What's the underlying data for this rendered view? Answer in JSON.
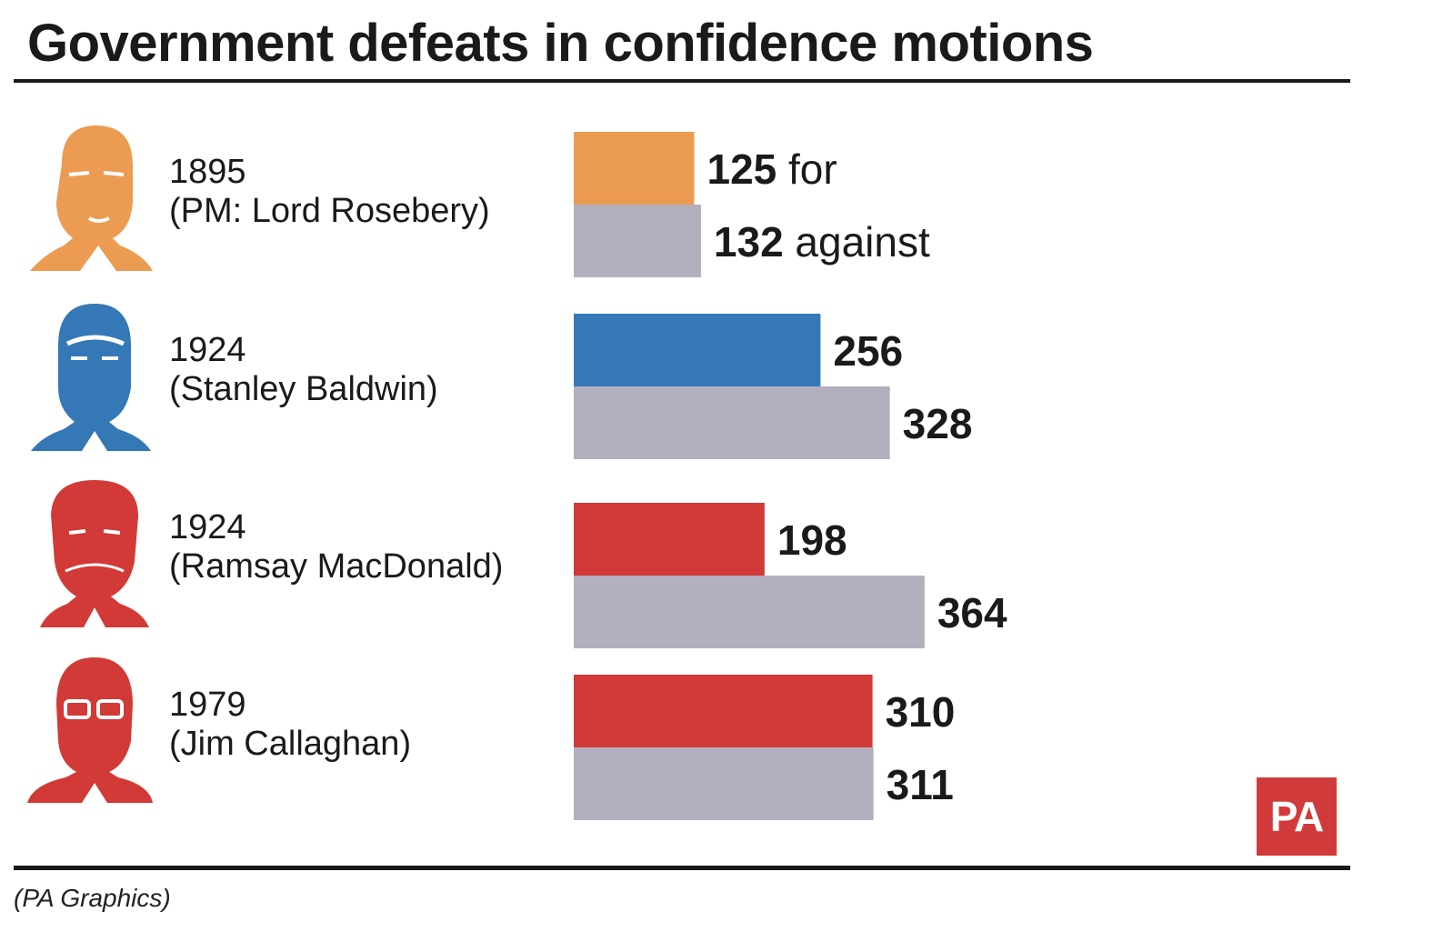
{
  "title": "Government defeats in confidence motions",
  "caption": "(PA Graphics)",
  "logo_text": "PA",
  "rows": [
    {
      "year": "1895",
      "name": "(PM: Lord Rosebery)",
      "party_color": "#eb9c52"
    },
    {
      "year": "1924",
      "name": "(Stanley Baldwin)",
      "party_color": "#3578b6"
    },
    {
      "year": "1924",
      "name": "(Ramsay MacDonald)",
      "party_color": "#d13a36"
    },
    {
      "year": "1979",
      "name": "(Jim Callaghan)",
      "party_color": "#d13a36"
    }
  ],
  "chart_data": {
    "type": "bar",
    "orientation": "horizontal",
    "title": "Government defeats in confidence motions",
    "categories": [
      "1895 (PM: Lord Rosebery)",
      "1924 (Stanley Baldwin)",
      "1924 (Ramsay MacDonald)",
      "1979 (Jim Callaghan)"
    ],
    "series": [
      {
        "name": "for",
        "values": [
          125,
          256,
          198,
          310
        ],
        "colors": [
          "#eb9c52",
          "#3578b6",
          "#d13a36",
          "#d13a36"
        ]
      },
      {
        "name": "against",
        "values": [
          132,
          328,
          364,
          311
        ],
        "color": "#b2b0be"
      }
    ],
    "first_row_suffixes": {
      "for": " for",
      "against": " against"
    },
    "grid": false,
    "legend": "none"
  }
}
